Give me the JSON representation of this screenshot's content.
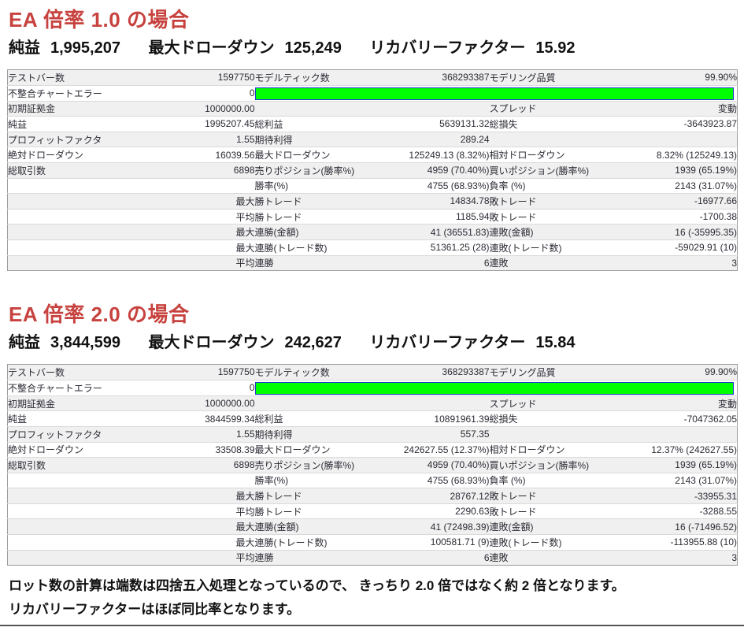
{
  "colors": {
    "heading_red": "#c7423e",
    "bar_green": "#00ff00",
    "bar_border": "#1d39cf",
    "row_alt_gray": "#f0f0f0"
  },
  "sections": [
    {
      "title": "EA 倍率 1.0 の場合",
      "summary": [
        {
          "label": "純益",
          "value": "1,995,207"
        },
        {
          "label": "最大ドローダウン",
          "value": "125,249"
        },
        {
          "label": "リカバリーファクター",
          "value": "15.92"
        }
      ],
      "table": {
        "rows": [
          {
            "cells": [
              "テストバー数",
              "1597750",
              "モデルティック数",
              "368293387",
              "モデリング品質",
              "99.90%"
            ]
          },
          {
            "cells": [
              "不整合チャートエラー",
              "0"
            ],
            "bar": true
          },
          {
            "cells": [
              "初期証拠金",
              "1000000.00",
              "",
              "",
              "スプレッド",
              "変動"
            ]
          },
          {
            "cells": [
              "純益",
              "1995207.45",
              "総利益",
              "5639131.32",
              "総損失",
              "-3643923.87"
            ]
          },
          {
            "cells": [
              "プロフィットファクタ",
              "1.55",
              "期待利得",
              "289.24",
              "",
              ""
            ]
          },
          {
            "cells": [
              "絶対ドローダウン",
              "16039.56",
              "最大ドローダウン",
              "125249.13 (8.32%)",
              "相対ドローダウン",
              "8.32% (125249.13)"
            ]
          },
          {
            "cells": [
              "総取引数",
              "6898",
              "売りポジション(勝率%)",
              "4959 (70.40%)",
              "買いポジション(勝率%)",
              "1939 (65.19%)"
            ]
          },
          {
            "cells": [
              "",
              "",
              "勝率(%)",
              "4755 (68.93%)",
              "負率 (%)",
              "2143 (31.07%)"
            ]
          },
          {
            "cells": [
              "",
              "最大",
              "勝トレード",
              "14834.78",
              "敗トレード",
              "-16977.66"
            ]
          },
          {
            "cells": [
              "",
              "平均",
              "勝トレード",
              "1185.94",
              "敗トレード",
              "-1700.38"
            ]
          },
          {
            "cells": [
              "",
              "最大",
              "連勝(金額)",
              "41 (36551.83)",
              "連敗(金額)",
              "16 (-35995.35)"
            ]
          },
          {
            "cells": [
              "",
              "最大",
              "連勝(トレード数)",
              "51361.25 (28)",
              "連敗(トレード数)",
              "-59029.91 (10)"
            ]
          },
          {
            "cells": [
              "",
              "平均",
              "連勝",
              "6",
              "連敗",
              "3"
            ]
          }
        ]
      }
    },
    {
      "title": "EA 倍率 2.0 の場合",
      "summary": [
        {
          "label": "純益",
          "value": "3,844,599"
        },
        {
          "label": "最大ドローダウン",
          "value": "242,627"
        },
        {
          "label": "リカバリーファクター",
          "value": "15.84"
        }
      ],
      "table": {
        "rows": [
          {
            "cells": [
              "テストバー数",
              "1597750",
              "モデルティック数",
              "368293387",
              "モデリング品質",
              "99.90%"
            ]
          },
          {
            "cells": [
              "不整合チャートエラー",
              "0"
            ],
            "bar": true
          },
          {
            "cells": [
              "初期証拠金",
              "1000000.00",
              "",
              "",
              "スプレッド",
              "変動"
            ]
          },
          {
            "cells": [
              "純益",
              "3844599.34",
              "総利益",
              "10891961.39",
              "総損失",
              "-7047362.05"
            ]
          },
          {
            "cells": [
              "プロフィットファクタ",
              "1.55",
              "期待利得",
              "557.35",
              "",
              ""
            ]
          },
          {
            "cells": [
              "絶対ドローダウン",
              "33508.39",
              "最大ドローダウン",
              "242627.55 (12.37%)",
              "相対ドローダウン",
              "12.37% (242627.55)"
            ]
          },
          {
            "cells": [
              "総取引数",
              "6898",
              "売りポジション(勝率%)",
              "4959 (70.40%)",
              "買いポジション(勝率%)",
              "1939 (65.19%)"
            ]
          },
          {
            "cells": [
              "",
              "",
              "勝率(%)",
              "4755 (68.93%)",
              "負率 (%)",
              "2143 (31.07%)"
            ]
          },
          {
            "cells": [
              "",
              "最大",
              "勝トレード",
              "28767.12",
              "敗トレード",
              "-33955.31"
            ]
          },
          {
            "cells": [
              "",
              "平均",
              "勝トレード",
              "2290.63",
              "敗トレード",
              "-3288.55"
            ]
          },
          {
            "cells": [
              "",
              "最大",
              "連勝(金額)",
              "41 (72498.39)",
              "連敗(金額)",
              "16 (-71496.52)"
            ]
          },
          {
            "cells": [
              "",
              "最大",
              "連勝(トレード数)",
              "100581.71 (9)",
              "連敗(トレード数)",
              "-113955.88 (10)"
            ]
          },
          {
            "cells": [
              "",
              "平均",
              "連勝",
              "6",
              "連敗",
              "3"
            ]
          }
        ]
      }
    }
  ],
  "footer": {
    "lines": [
      "ロット数の計算は端数は四捨五入処理となっているので、 きっちり 2.0 倍ではなく約 2 倍となります。",
      "リカバリーファクターはほぼ同比率となります。"
    ]
  }
}
